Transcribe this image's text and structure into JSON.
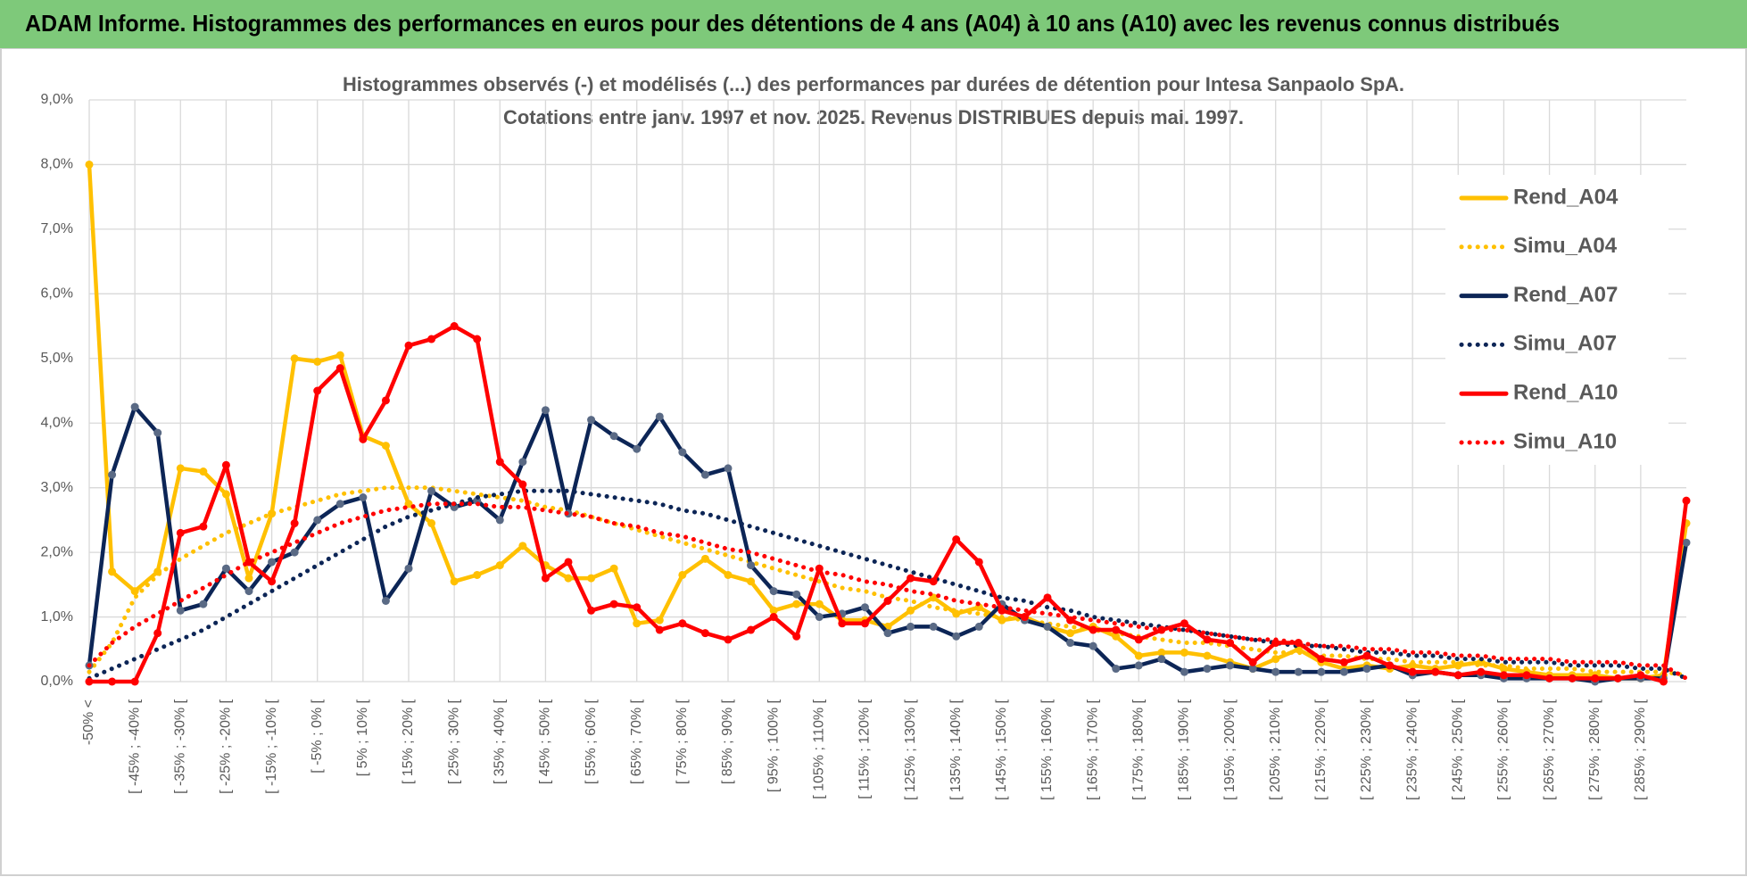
{
  "header": {
    "title": "ADAM Informe. Histogrammes des performances en euros pour des détentions de 4 ans (A04) à 10 ans (A10) avec les revenus connus distribués"
  },
  "chart_data": {
    "type": "line",
    "title": "Histogrammes observés (-) et modélisés (...) des performances par durées de détention pour Intesa Sanpaolo SpA.",
    "subtitle": "Cotations entre janv. 1997 et nov. 2025. Revenus DISTRIBUES depuis mai. 1997.",
    "categories": [
      "-50% <",
      null,
      "[ -45% ; -40% [",
      null,
      "[ -35% ; -30% [",
      null,
      "[ -25% ; -20% [",
      null,
      "[ -15% ; -10% [",
      null,
      "[ -5% ; 0% [",
      null,
      "[ 5% ; 10% [",
      null,
      "[ 15% ; 20% [",
      null,
      "[ 25% ; 30% [",
      null,
      "[ 35% ; 40% [",
      null,
      "[ 45% ; 50% [",
      null,
      "[ 55% ; 60% [",
      null,
      "[ 65% ; 70% [",
      null,
      "[ 75% ; 80% [",
      null,
      "[ 85% ; 90% [",
      null,
      "[ 95% ; 100% [",
      null,
      "[ 105% ; 110% [",
      null,
      "[ 115% ; 120% [",
      null,
      "[ 125% ; 130% [",
      null,
      "[ 135% ; 140% [",
      null,
      "[ 145% ; 150% [",
      null,
      "[ 155% ; 160% [",
      null,
      "[ 165% ; 170% [",
      null,
      "[ 175% ; 180% [",
      null,
      "[ 185% ; 190% [",
      null,
      "[ 195% ; 200% [",
      null,
      "[ 205% ; 210% [",
      null,
      "[ 215% ; 220% [",
      null,
      "[ 225% ; 230% [",
      null,
      "[ 235% ; 240% [",
      null,
      "[ 245% ; 250% [",
      null,
      "[ 255% ; 260% [",
      null,
      "[ 265% ; 270% [",
      null,
      "[ 275% ; 280% [",
      null,
      "[ 285% ; 290% [",
      null,
      null
    ],
    "series": [
      {
        "name": "Rend_A04",
        "color": "#ffc000",
        "style": "solid",
        "values": [
          8.0,
          1.7,
          1.4,
          1.7,
          3.3,
          3.25,
          2.9,
          1.6,
          2.6,
          5.0,
          4.95,
          5.05,
          3.8,
          3.65,
          2.75,
          2.45,
          1.55,
          1.65,
          1.8,
          2.1,
          1.8,
          1.6,
          1.6,
          1.75,
          0.9,
          0.95,
          1.65,
          1.9,
          1.65,
          1.55,
          1.1,
          1.2,
          1.2,
          0.95,
          0.95,
          0.85,
          1.1,
          1.3,
          1.05,
          1.15,
          0.95,
          1.0,
          0.85,
          0.75,
          0.85,
          0.7,
          0.4,
          0.45,
          0.45,
          0.4,
          0.3,
          0.2,
          0.35,
          0.5,
          0.3,
          0.2,
          0.25,
          0.2,
          0.25,
          0.2,
          0.25,
          0.3,
          0.2,
          0.15,
          0.1,
          0.1,
          0.1,
          0.05,
          0.05,
          0.1,
          2.45
        ]
      },
      {
        "name": "Simu_A04",
        "color": "#ffc000",
        "style": "dotted",
        "values": [
          0.15,
          0.6,
          1.3,
          1.65,
          1.9,
          2.1,
          2.3,
          2.45,
          2.6,
          2.7,
          2.8,
          2.9,
          2.95,
          3.0,
          3.0,
          3.0,
          2.95,
          2.9,
          2.85,
          2.8,
          2.7,
          2.65,
          2.55,
          2.45,
          2.35,
          2.25,
          2.15,
          2.05,
          1.95,
          1.85,
          1.75,
          1.65,
          1.55,
          1.45,
          1.4,
          1.3,
          1.25,
          1.15,
          1.1,
          1.05,
          1.0,
          0.95,
          0.9,
          0.85,
          0.8,
          0.75,
          0.7,
          0.65,
          0.6,
          0.6,
          0.55,
          0.5,
          0.45,
          0.45,
          0.4,
          0.4,
          0.35,
          0.35,
          0.3,
          0.3,
          0.3,
          0.25,
          0.25,
          0.2,
          0.2,
          0.2,
          0.15,
          0.15,
          0.15,
          0.15,
          0.1
        ]
      },
      {
        "name": "Rend_A07",
        "color": "#0c2556",
        "style": "solid",
        "values": [
          0.25,
          3.2,
          4.25,
          3.85,
          1.1,
          1.2,
          1.75,
          1.4,
          1.85,
          2.0,
          2.5,
          2.75,
          2.85,
          1.25,
          1.75,
          2.95,
          2.7,
          2.8,
          2.5,
          3.4,
          4.2,
          2.6,
          4.05,
          3.8,
          3.6,
          4.1,
          3.55,
          3.2,
          3.3,
          1.8,
          1.4,
          1.35,
          1.0,
          1.05,
          1.15,
          0.75,
          0.85,
          0.85,
          0.7,
          0.85,
          1.2,
          0.95,
          0.85,
          0.6,
          0.55,
          0.2,
          0.25,
          0.35,
          0.15,
          0.2,
          0.25,
          0.2,
          0.15,
          0.15,
          0.15,
          0.15,
          0.2,
          0.25,
          0.1,
          0.15,
          0.1,
          0.1,
          0.05,
          0.05,
          0.05,
          0.05,
          0.0,
          0.05,
          0.05,
          0.05,
          2.15
        ]
      },
      {
        "name": "Simu_A07",
        "color": "#0c2556",
        "style": "dotted",
        "values": [
          0.05,
          0.2,
          0.35,
          0.5,
          0.65,
          0.8,
          1.0,
          1.2,
          1.4,
          1.6,
          1.8,
          2.0,
          2.2,
          2.4,
          2.55,
          2.65,
          2.75,
          2.85,
          2.9,
          2.95,
          2.95,
          2.95,
          2.9,
          2.85,
          2.8,
          2.75,
          2.65,
          2.6,
          2.5,
          2.4,
          2.3,
          2.2,
          2.1,
          2.0,
          1.9,
          1.8,
          1.7,
          1.6,
          1.5,
          1.4,
          1.3,
          1.25,
          1.15,
          1.1,
          1.0,
          0.95,
          0.9,
          0.85,
          0.8,
          0.75,
          0.7,
          0.65,
          0.6,
          0.55,
          0.55,
          0.5,
          0.45,
          0.45,
          0.4,
          0.4,
          0.35,
          0.35,
          0.3,
          0.3,
          0.3,
          0.25,
          0.25,
          0.25,
          0.2,
          0.2,
          0.05
        ]
      },
      {
        "name": "Rend_A10",
        "color": "#ff0000",
        "style": "solid",
        "values": [
          0,
          0,
          0,
          0.75,
          2.3,
          2.4,
          3.35,
          1.85,
          1.55,
          2.45,
          4.5,
          4.85,
          3.75,
          4.35,
          5.2,
          5.3,
          5.5,
          5.3,
          3.4,
          3.05,
          1.6,
          1.85,
          1.1,
          1.2,
          1.15,
          0.8,
          0.9,
          0.75,
          0.65,
          0.8,
          1.0,
          0.7,
          1.75,
          0.9,
          0.9,
          1.25,
          1.6,
          1.55,
          2.2,
          1.85,
          1.1,
          1.0,
          1.3,
          0.95,
          0.8,
          0.8,
          0.65,
          0.8,
          0.9,
          0.65,
          0.6,
          0.3,
          0.6,
          0.6,
          0.35,
          0.3,
          0.4,
          0.25,
          0.15,
          0.15,
          0.1,
          0.15,
          0.1,
          0.1,
          0.05,
          0.05,
          0.05,
          0.05,
          0.1,
          0.0,
          2.8
        ]
      },
      {
        "name": "Simu_A10",
        "color": "#ff0000",
        "style": "dotted",
        "values": [
          0.25,
          0.6,
          0.85,
          1.05,
          1.25,
          1.45,
          1.65,
          1.85,
          2.0,
          2.15,
          2.3,
          2.45,
          2.55,
          2.65,
          2.7,
          2.75,
          2.75,
          2.75,
          2.7,
          2.7,
          2.65,
          2.6,
          2.55,
          2.45,
          2.4,
          2.3,
          2.25,
          2.15,
          2.05,
          2.0,
          1.9,
          1.8,
          1.7,
          1.65,
          1.55,
          1.5,
          1.4,
          1.35,
          1.25,
          1.2,
          1.15,
          1.1,
          1.05,
          1.0,
          0.95,
          0.9,
          0.85,
          0.8,
          0.8,
          0.75,
          0.7,
          0.65,
          0.65,
          0.6,
          0.55,
          0.55,
          0.5,
          0.5,
          0.45,
          0.45,
          0.4,
          0.4,
          0.35,
          0.35,
          0.35,
          0.3,
          0.3,
          0.3,
          0.25,
          0.25,
          0.05
        ]
      }
    ],
    "ylim": [
      0,
      9
    ],
    "yticks": [
      {
        "value": 0,
        "label": "0,0%"
      },
      {
        "value": 1,
        "label": "1,0%"
      },
      {
        "value": 2,
        "label": "2,0%"
      },
      {
        "value": 3,
        "label": "3,0%"
      },
      {
        "value": 4,
        "label": "4,0%"
      },
      {
        "value": 5,
        "label": "5,0%"
      },
      {
        "value": 6,
        "label": "6,0%"
      },
      {
        "value": 7,
        "label": "7,0%"
      },
      {
        "value": 8,
        "label": "8,0%"
      },
      {
        "value": 9,
        "label": "9,0%"
      }
    ],
    "grid": true,
    "legend": "right"
  }
}
